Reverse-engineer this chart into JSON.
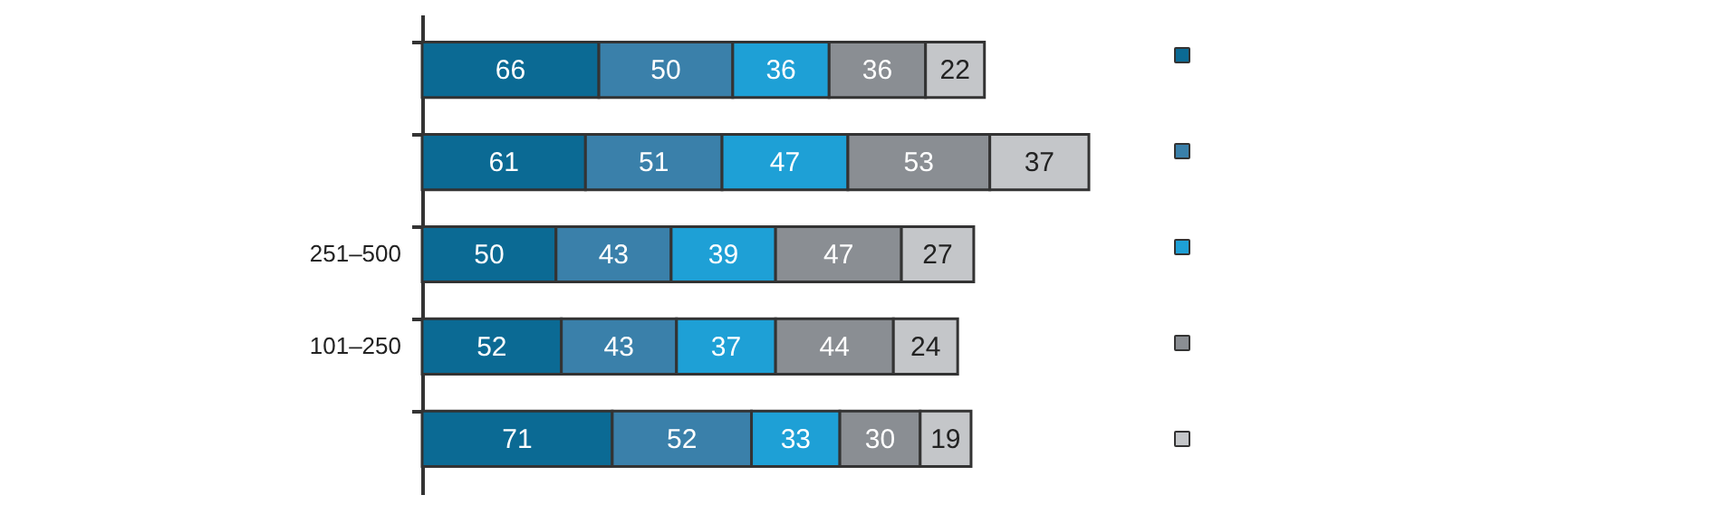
{
  "chart_data": {
    "type": "bar",
    "orientation": "horizontal",
    "stacked": true,
    "data_labels": true,
    "categories": [
      null,
      null,
      "251–500",
      "101–250",
      null
    ],
    "series": [
      {
        "color": "#0b6a94",
        "values": [
          66,
          61,
          50,
          52,
          71
        ]
      },
      {
        "color": "#3a80aa",
        "values": [
          50,
          51,
          43,
          43,
          52
        ]
      },
      {
        "color": "#1ea0d6",
        "values": [
          36,
          47,
          39,
          37,
          33
        ]
      },
      {
        "color": "#8a8e93",
        "values": [
          36,
          53,
          47,
          44,
          30
        ]
      },
      {
        "color": "#c4c6c9",
        "values": [
          22,
          37,
          27,
          24,
          19
        ]
      }
    ]
  }
}
